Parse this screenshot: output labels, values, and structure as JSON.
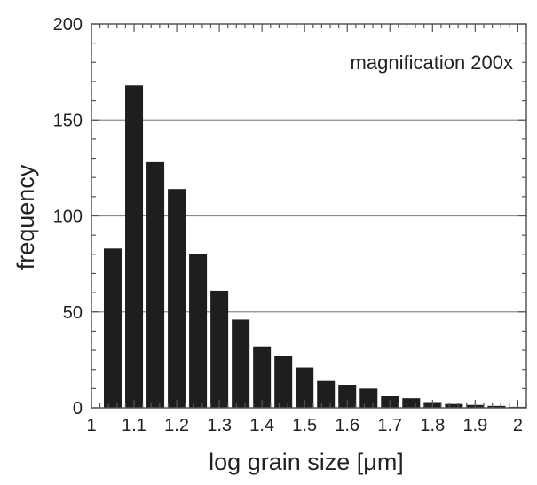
{
  "chart_data": {
    "type": "bar",
    "title": "",
    "annotation": "magnification 200x",
    "xlabel": "log grain size [μm]",
    "ylabel": "frequency",
    "xlim": [
      1.0,
      2.02
    ],
    "ylim": [
      0,
      200
    ],
    "x_ticks": [
      1,
      1.1,
      1.2,
      1.3,
      1.4,
      1.5,
      1.6,
      1.7,
      1.8,
      1.9,
      2
    ],
    "x_tick_labels": [
      "1",
      "1.1",
      "1.2",
      "1.3",
      "1.4",
      "1.5",
      "1.6",
      "1.7",
      "1.8",
      "1.9",
      "2"
    ],
    "y_ticks": [
      0,
      50,
      100,
      150,
      200
    ],
    "y_tick_labels": [
      "0",
      "50",
      "100",
      "150",
      "200"
    ],
    "grid": "horizontal",
    "bin_width": 0.05,
    "bin_centers": [
      1.05,
      1.1,
      1.15,
      1.2,
      1.25,
      1.3,
      1.35,
      1.4,
      1.45,
      1.5,
      1.55,
      1.6,
      1.65,
      1.7,
      1.75,
      1.8,
      1.85,
      1.9,
      1.95,
      2.0
    ],
    "values": [
      83,
      168,
      128,
      114,
      80,
      61,
      46,
      32,
      27,
      21,
      14,
      12,
      10,
      6,
      5,
      3,
      2,
      1.5,
      1,
      0.5
    ],
    "colors": {
      "bar": "#1e1e1e",
      "grid": "#8a8a8a",
      "axis": "#555555"
    }
  }
}
